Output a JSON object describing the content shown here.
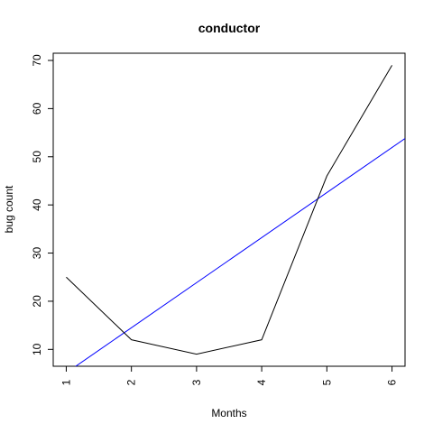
{
  "chart_data": {
    "type": "line",
    "title": "conductor",
    "xlabel": "Months",
    "ylabel": "bug count",
    "x": [
      1,
      2,
      3,
      4,
      5,
      6
    ],
    "xlim": [
      0.8,
      6.2
    ],
    "ylim": [
      6.5,
      71.5
    ],
    "xticks": [
      "1",
      "2",
      "3",
      "4",
      "5",
      "6"
    ],
    "yticks": [
      "10",
      "20",
      "30",
      "40",
      "50",
      "60",
      "70"
    ],
    "series": [
      {
        "values": [
          25,
          12,
          9,
          12,
          46,
          69
        ],
        "color": "#000000"
      }
    ],
    "trend_line": {
      "x": [
        0.8,
        6.2
      ],
      "y": [
        3.26,
        53.8
      ],
      "color": "#0000ff"
    },
    "grid": false,
    "legend": "none"
  }
}
